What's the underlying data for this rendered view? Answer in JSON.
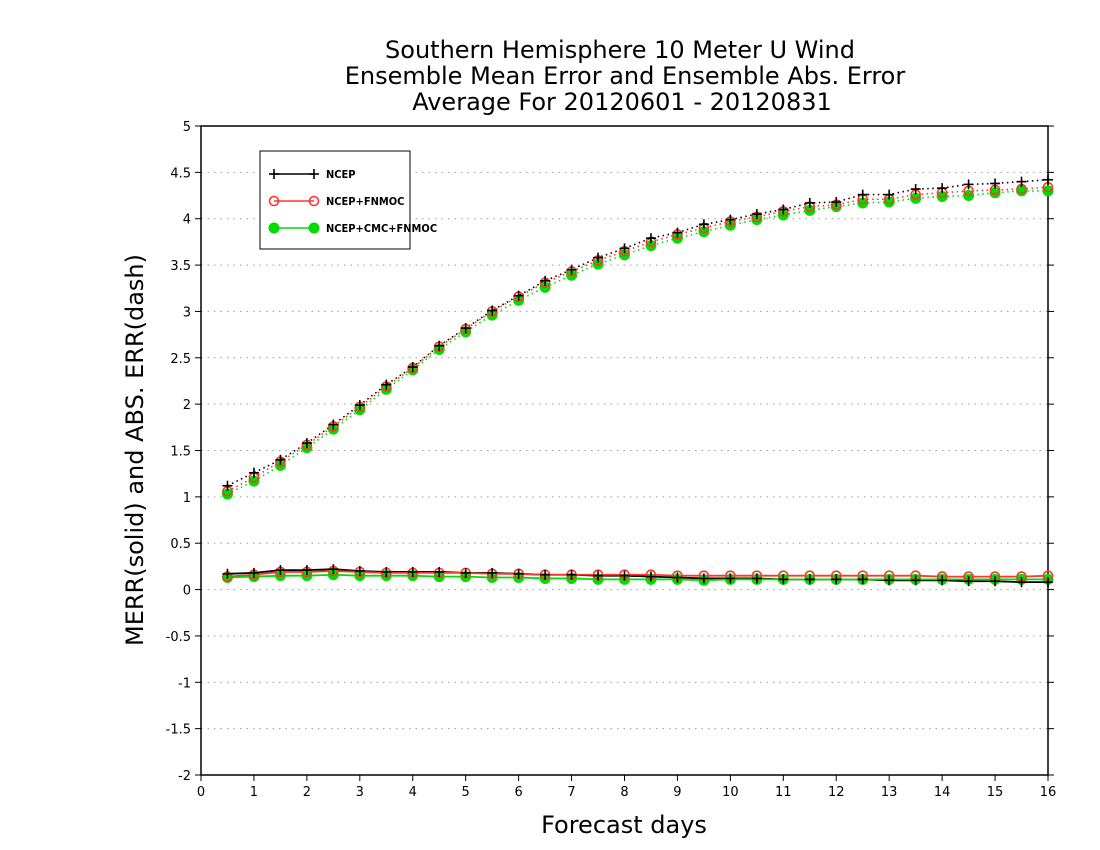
{
  "chart_data": {
    "type": "line",
    "title": [
      "Southern Hemisphere 10 Meter U Wind",
      "Ensemble Mean Error and Ensemble Abs. Error",
      "Average For 20120601 - 20120831"
    ],
    "xlabel": "Forecast days",
    "ylabel": "MERR(solid) and ABS. ERR(dash)",
    "xlim": [
      0,
      16
    ],
    "ylim": [
      -2,
      5
    ],
    "xticks": [
      "0",
      "1",
      "2",
      "3",
      "4",
      "5",
      "6",
      "7",
      "8",
      "9",
      "10",
      "11",
      "12",
      "13",
      "14",
      "15",
      "16"
    ],
    "yticks": [
      "5",
      "4.5",
      "4",
      "3.5",
      "3",
      "2.5",
      "2",
      "1.5",
      "1",
      "0.5",
      "0",
      "-0.5",
      "-1",
      "-1.5",
      "-2"
    ],
    "grid": true,
    "legend_position": "top-left",
    "x": [
      0.5,
      1,
      1.5,
      2,
      2.5,
      3,
      3.5,
      4,
      4.5,
      5,
      5.5,
      6,
      6.5,
      7,
      7.5,
      8,
      8.5,
      9,
      9.5,
      10,
      10.5,
      11,
      11.5,
      12,
      12.5,
      13,
      13.5,
      14,
      14.5,
      15,
      15.5,
      16
    ],
    "series": [
      {
        "name": "NCEP",
        "color": "#000000",
        "marker": "plus",
        "mean_error": [
          0.17,
          0.18,
          0.21,
          0.21,
          0.22,
          0.2,
          0.19,
          0.19,
          0.19,
          0.18,
          0.18,
          0.17,
          0.16,
          0.16,
          0.15,
          0.15,
          0.14,
          0.13,
          0.12,
          0.12,
          0.12,
          0.11,
          0.11,
          0.11,
          0.11,
          0.1,
          0.1,
          0.1,
          0.09,
          0.09,
          0.08,
          0.08
        ],
        "abs_error": [
          1.12,
          1.26,
          1.4,
          1.58,
          1.78,
          1.99,
          2.21,
          2.4,
          2.63,
          2.82,
          3.01,
          3.17,
          3.33,
          3.45,
          3.58,
          3.68,
          3.79,
          3.85,
          3.94,
          3.99,
          4.05,
          4.1,
          4.17,
          4.18,
          4.26,
          4.26,
          4.32,
          4.33,
          4.37,
          4.38,
          4.4,
          4.42
        ]
      },
      {
        "name": "NCEP+FNMOC",
        "color": "#ff3333",
        "marker": "open-circle",
        "mean_error": [
          0.14,
          0.16,
          0.19,
          0.19,
          0.2,
          0.19,
          0.18,
          0.18,
          0.18,
          0.18,
          0.17,
          0.17,
          0.16,
          0.16,
          0.16,
          0.16,
          0.16,
          0.15,
          0.15,
          0.15,
          0.15,
          0.15,
          0.15,
          0.15,
          0.15,
          0.15,
          0.15,
          0.14,
          0.14,
          0.14,
          0.14,
          0.15
        ],
        "abs_error": [
          1.06,
          1.21,
          1.38,
          1.56,
          1.76,
          1.97,
          2.19,
          2.39,
          2.62,
          2.81,
          3.0,
          3.16,
          3.31,
          3.43,
          3.55,
          3.65,
          3.75,
          3.83,
          3.9,
          3.97,
          4.02,
          4.08,
          4.13,
          4.15,
          4.21,
          4.21,
          4.26,
          4.28,
          4.3,
          4.31,
          4.32,
          4.34
        ]
      },
      {
        "name": "NCEP+CMC+FNMOC",
        "color": "#00dd00",
        "marker": "filled-circle",
        "mean_error": [
          0.13,
          0.14,
          0.15,
          0.15,
          0.16,
          0.15,
          0.15,
          0.15,
          0.14,
          0.14,
          0.13,
          0.13,
          0.12,
          0.12,
          0.11,
          0.11,
          0.11,
          0.11,
          0.1,
          0.11,
          0.11,
          0.11,
          0.11,
          0.11,
          0.11,
          0.11,
          0.11,
          0.11,
          0.11,
          0.11,
          0.11,
          0.11
        ],
        "abs_error": [
          1.03,
          1.17,
          1.34,
          1.53,
          1.73,
          1.94,
          2.16,
          2.37,
          2.59,
          2.78,
          2.96,
          3.12,
          3.26,
          3.39,
          3.51,
          3.61,
          3.71,
          3.79,
          3.86,
          3.93,
          3.99,
          4.04,
          4.09,
          4.13,
          4.17,
          4.18,
          4.22,
          4.24,
          4.25,
          4.28,
          4.3,
          4.3
        ]
      }
    ]
  }
}
